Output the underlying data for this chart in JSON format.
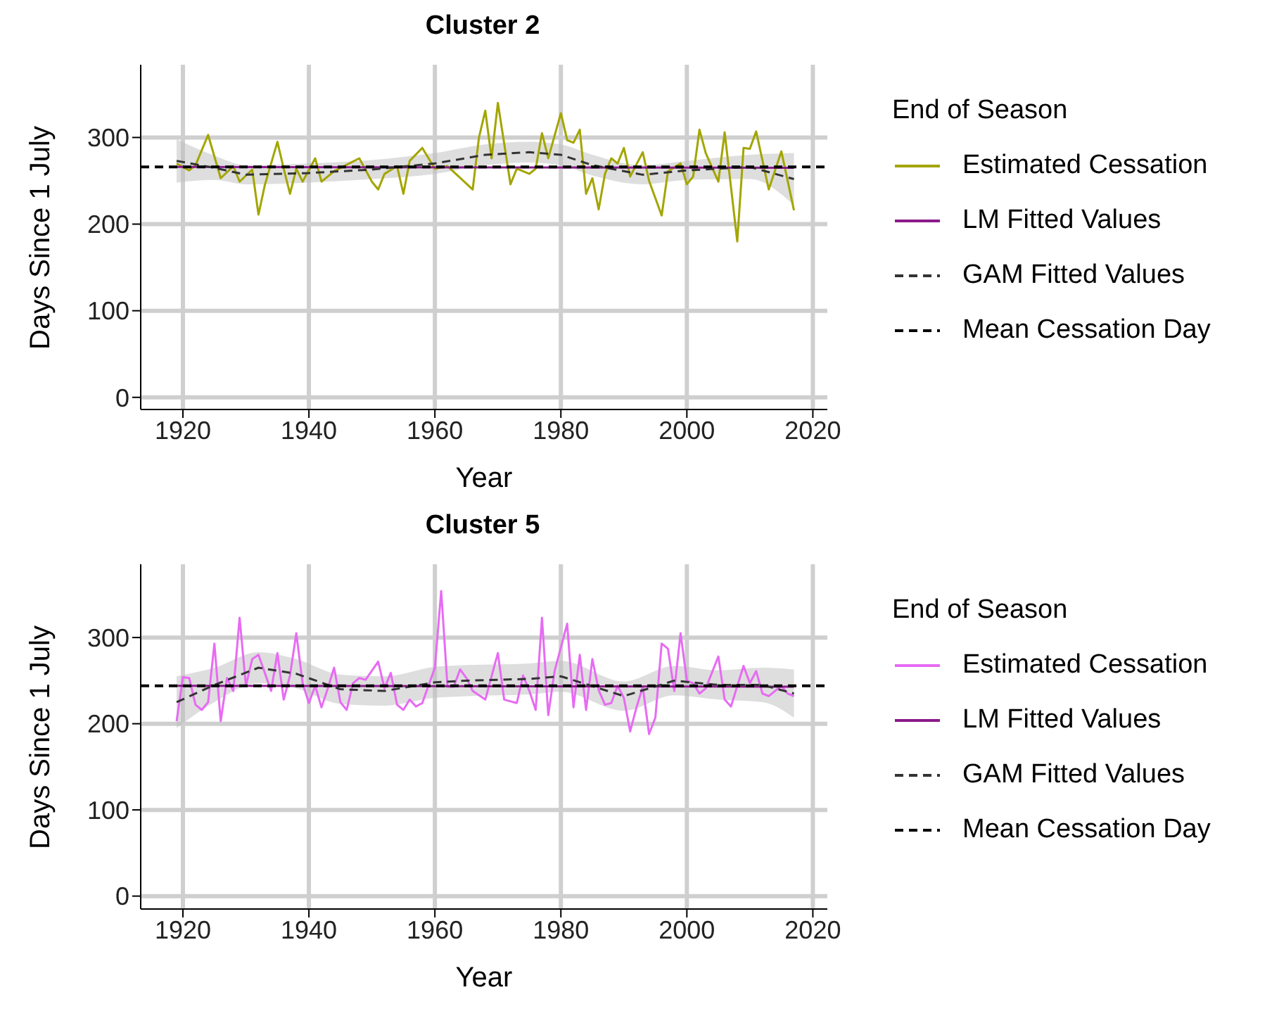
{
  "chart_data": [
    {
      "type": "line",
      "title": "Cluster 2",
      "xlabel": "Year",
      "ylabel": "Days Since 1 July",
      "legend_title": "End of Season",
      "legend": "right",
      "grid": true,
      "xlim": [
        1913.3,
        2022.3
      ],
      "xticks": [
        1920,
        1940,
        1960,
        1980,
        2000,
        2020
      ],
      "ylim": [
        -14,
        384
      ],
      "yticks": [
        0,
        100,
        200,
        300
      ],
      "series": [
        {
          "name": "Estimated Cessation",
          "color": "#a3a500",
          "line_style": "solid",
          "x": [
            1919,
            1921,
            1922,
            1924,
            1926,
            1928,
            1929,
            1931,
            1932,
            1933,
            1935,
            1936,
            1937,
            1938,
            1939,
            1941,
            1942,
            1944,
            1948,
            1950,
            1951,
            1952,
            1954,
            1955,
            1956,
            1958,
            1960,
            1962,
            1966,
            1967,
            1968,
            1969,
            1970,
            1972,
            1973,
            1975,
            1976,
            1977,
            1978,
            1980,
            1981,
            1982,
            1983,
            1984,
            1985,
            1986,
            1987,
            1988,
            1989,
            1990,
            1991,
            1993,
            1994,
            1996,
            1997,
            1999,
            2000,
            2001,
            2002,
            2003,
            2005,
            2006,
            2008,
            2009,
            2010,
            2011,
            2013,
            2015,
            2017
          ],
          "values": [
            270,
            262,
            268,
            303,
            253,
            267,
            249,
            263,
            211,
            245,
            295,
            264,
            235,
            264,
            249,
            276,
            249,
            261,
            276,
            249,
            240,
            258,
            267,
            235,
            273,
            288,
            264,
            267,
            240,
            300,
            331,
            276,
            340,
            246,
            264,
            258,
            264,
            305,
            276,
            328,
            297,
            294,
            309,
            235,
            253,
            217,
            258,
            276,
            270,
            288,
            255,
            283,
            250,
            210,
            261,
            270,
            246,
            255,
            309,
            282,
            249,
            306,
            180,
            288,
            287,
            307,
            240,
            284,
            216
          ]
        },
        {
          "name": "LM Fitted Values",
          "type": "line",
          "color": "#8b1a8b",
          "line_style": "solid",
          "x": [
            1919,
            2017
          ],
          "values": [
            266,
            265
          ]
        },
        {
          "name": "GAM Fitted Values",
          "type": "line",
          "color": "#333333",
          "line_style": "dashed",
          "x": [
            1919,
            1925,
            1930,
            1940,
            1950,
            1960,
            1968,
            1975,
            1980,
            1985,
            1993,
            2000,
            2010,
            2017
          ],
          "values": [
            273,
            265,
            257,
            259,
            263,
            270,
            280,
            283,
            280,
            268,
            257,
            262,
            266,
            252
          ],
          "lower": [
            248,
            251,
            246,
            248,
            252,
            258,
            268,
            271,
            268,
            256,
            246,
            251,
            252,
            222
          ],
          "upper": [
            298,
            279,
            268,
            270,
            274,
            282,
            292,
            295,
            292,
            280,
            268,
            273,
            280,
            282
          ]
        }
      ],
      "ref_lines": [
        {
          "axis": "y",
          "value": 266,
          "label": "Mean Cessation Day",
          "color": "#000000",
          "line_style": "dashed"
        }
      ]
    },
    {
      "type": "line",
      "title": "Cluster 5",
      "xlabel": "Year",
      "ylabel": "Days Since 1 July",
      "legend_title": "End of Season",
      "legend": "right",
      "grid": true,
      "xlim": [
        1913.3,
        2022.3
      ],
      "xticks": [
        1920,
        1940,
        1960,
        1980,
        2000,
        2020
      ],
      "ylim": [
        -15,
        385
      ],
      "yticks": [
        0,
        100,
        200,
        300
      ],
      "series": [
        {
          "name": "Estimated Cessation",
          "color": "#e76bf3",
          "line_style": "solid",
          "x": [
            1919,
            1920,
            1921,
            1922,
            1923,
            1924,
            1925,
            1926,
            1927,
            1928,
            1929,
            1930,
            1931,
            1932,
            1933,
            1934,
            1935,
            1936,
            1937,
            1938,
            1939,
            1940,
            1941,
            1942,
            1943,
            1944,
            1945,
            1946,
            1947,
            1948,
            1949,
            1951,
            1952,
            1953,
            1954,
            1955,
            1956,
            1957,
            1958,
            1960,
            1961,
            1962,
            1963,
            1964,
            1965,
            1966,
            1968,
            1970,
            1971,
            1973,
            1974,
            1975,
            1976,
            1977,
            1978,
            1979,
            1981,
            1982,
            1983,
            1984,
            1985,
            1986,
            1987,
            1988,
            1989,
            1990,
            1991,
            1992,
            1993,
            1994,
            1995,
            1996,
            1997,
            1998,
            1999,
            2000,
            2001,
            2002,
            2003,
            2005,
            2006,
            2007,
            2009,
            2010,
            2011,
            2012,
            2013,
            2014,
            2015,
            2016,
            2017
          ],
          "values": [
            203,
            254,
            253,
            222,
            216,
            225,
            293,
            203,
            253,
            238,
            323,
            244,
            275,
            280,
            259,
            238,
            282,
            228,
            256,
            305,
            247,
            224,
            244,
            219,
            241,
            265,
            225,
            216,
            247,
            253,
            251,
            272,
            241,
            259,
            222,
            216,
            228,
            220,
            224,
            265,
            354,
            243,
            243,
            263,
            253,
            238,
            228,
            282,
            228,
            224,
            256,
            238,
            216,
            323,
            210,
            261,
            316,
            219,
            280,
            216,
            275,
            239,
            222,
            224,
            244,
            230,
            191,
            219,
            243,
            188,
            207,
            293,
            287,
            238,
            305,
            250,
            247,
            235,
            241,
            278,
            228,
            220,
            267,
            247,
            261,
            235,
            232,
            238,
            244,
            235,
            232
          ]
        },
        {
          "name": "LM Fitted Values",
          "type": "line",
          "color": "#8b1a8b",
          "line_style": "solid",
          "x": [
            1919,
            2017
          ],
          "values": [
            244,
            243
          ]
        },
        {
          "name": "GAM Fitted Values",
          "type": "line",
          "color": "#333333",
          "line_style": "dashed",
          "x": [
            1919,
            1925,
            1932,
            1938,
            1945,
            1952,
            1960,
            1965,
            1975,
            1980,
            1990,
            1998,
            2005,
            2012,
            2017
          ],
          "values": [
            225,
            245,
            265,
            258,
            240,
            238,
            248,
            250,
            252,
            255,
            232,
            250,
            245,
            245,
            235
          ],
          "lower": [
            195,
            225,
            247,
            241,
            223,
            221,
            230,
            232,
            234,
            237,
            215,
            233,
            228,
            225,
            207
          ],
          "upper": [
            255,
            265,
            283,
            275,
            257,
            255,
            266,
            268,
            270,
            273,
            249,
            267,
            262,
            265,
            263
          ]
        }
      ],
      "ref_lines": [
        {
          "axis": "y",
          "value": 244,
          "label": "Mean Cessation Day",
          "color": "#000000",
          "line_style": "dashed"
        }
      ]
    }
  ]
}
